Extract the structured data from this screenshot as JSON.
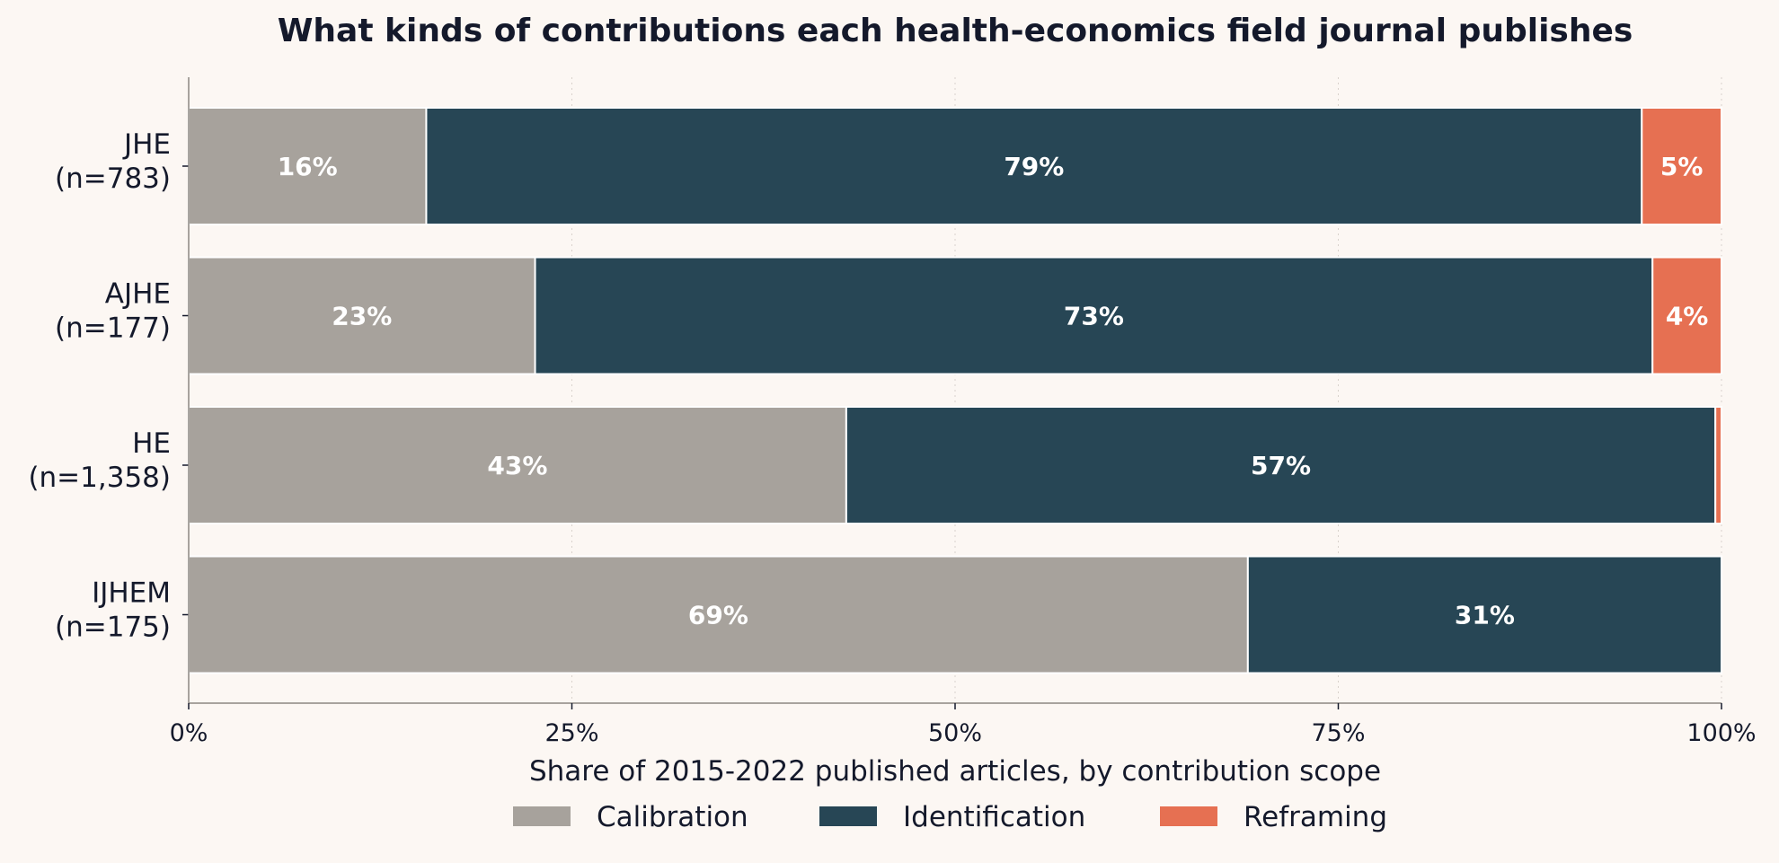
{
  "chart_data": {
    "type": "bar",
    "orientation": "horizontal",
    "stacked": true,
    "title": "What kinds of contributions each health-economics field journal publishes",
    "xlabel": "Share of 2015-2022 published articles, by contribution scope",
    "ylabel": "",
    "xlim": [
      0,
      100
    ],
    "x_ticks": [
      0,
      25,
      50,
      75,
      100
    ],
    "x_tick_labels": [
      "0%",
      "25%",
      "50%",
      "75%",
      "100%"
    ],
    "grid": "vertical-dotted",
    "legend_position": "bottom-center",
    "categories": [
      [
        "JHE",
        "(n=783)"
      ],
      [
        "AJHE",
        "(n=177)"
      ],
      [
        "HE",
        "(n=1,358)"
      ],
      [
        "IJHEM",
        "(n=175)"
      ]
    ],
    "series": [
      {
        "name": "Calibration",
        "color": "#a7a29c",
        "values": [
          15.5,
          22.6,
          42.9,
          69.1
        ],
        "labels": [
          "16%",
          "23%",
          "43%",
          "69%"
        ]
      },
      {
        "name": "Identification",
        "color": "#274655",
        "values": [
          79.3,
          72.9,
          56.7,
          30.9
        ],
        "labels": [
          "79%",
          "73%",
          "57%",
          "31%"
        ]
      },
      {
        "name": "Reframing",
        "color": "#e67052",
        "values": [
          5.2,
          4.5,
          0.4,
          0
        ],
        "labels": [
          "5%",
          "4%",
          "",
          ""
        ]
      }
    ]
  }
}
